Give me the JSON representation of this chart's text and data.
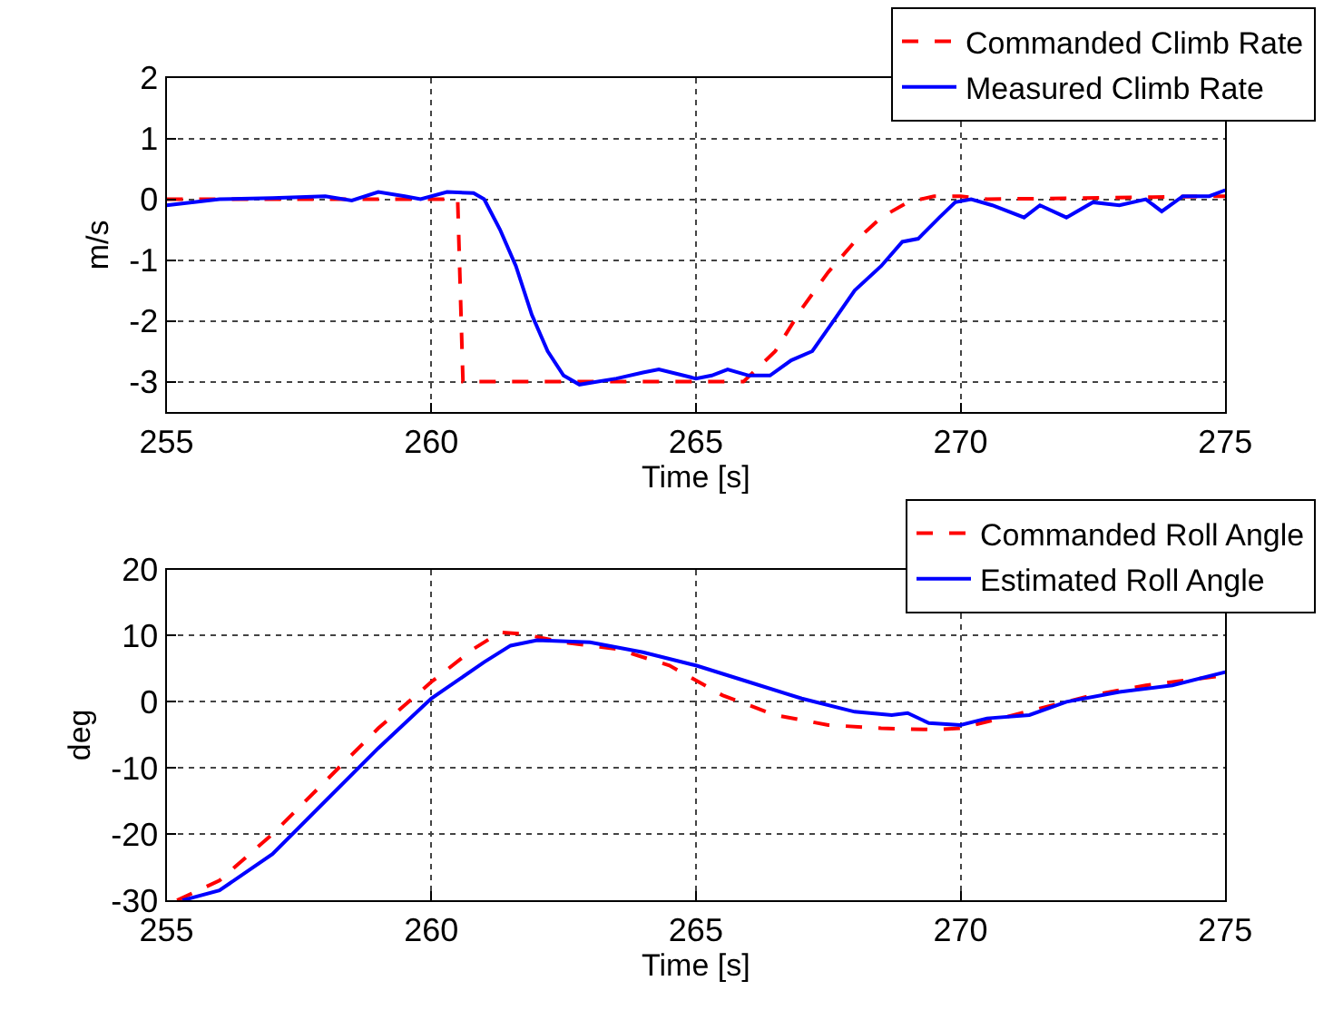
{
  "chart_data": [
    {
      "type": "line",
      "xlabel": "Time [s]",
      "ylabel": "m/s",
      "xlim": [
        255,
        275
      ],
      "xticks": [
        255,
        260,
        265,
        270,
        275
      ],
      "ylim": [
        -3.5,
        2
      ],
      "yticks": [
        -3,
        -2,
        -1,
        0,
        1,
        2
      ],
      "grid": true,
      "legend": "top right",
      "series": [
        {
          "name": "Commanded Climb Rate",
          "color": "#ff0000",
          "line_style": "dashed",
          "x": [
            255,
            260.5,
            260.6,
            265.9,
            266.5,
            267,
            267.5,
            268,
            268.5,
            269,
            269.5,
            270,
            270.5,
            275
          ],
          "values": [
            0,
            0,
            -3,
            -3,
            -2.5,
            -1.8,
            -1.2,
            -0.7,
            -0.3,
            -0.05,
            0.05,
            0.05,
            0,
            0.05
          ]
        },
        {
          "name": "Measured Climb Rate",
          "color": "#0000ff",
          "line_style": "solid",
          "x": [
            255,
            256,
            257,
            258,
            258.5,
            259,
            259.5,
            259.8,
            260.3,
            260.8,
            261,
            261.3,
            261.6,
            261.9,
            262.2,
            262.5,
            262.8,
            263.5,
            264,
            264.3,
            265,
            265.3,
            265.6,
            266,
            266.4,
            266.8,
            267.2,
            267.6,
            268,
            268.5,
            268.9,
            269.2,
            269.6,
            269.9,
            270.2,
            270.6,
            271.2,
            271.5,
            272,
            272.5,
            273,
            273.5,
            273.8,
            274.2,
            274.7,
            275
          ],
          "values": [
            -0.1,
            0,
            0.02,
            0.05,
            -0.02,
            0.12,
            0.05,
            0,
            0.12,
            0.1,
            0,
            -0.5,
            -1.1,
            -1.9,
            -2.5,
            -2.9,
            -3.05,
            -2.95,
            -2.85,
            -2.8,
            -2.95,
            -2.9,
            -2.8,
            -2.9,
            -2.9,
            -2.65,
            -2.5,
            -2.0,
            -1.5,
            -1.1,
            -0.7,
            -0.65,
            -0.3,
            -0.05,
            0,
            -0.1,
            -0.3,
            -0.1,
            -0.3,
            -0.05,
            -0.1,
            0,
            -0.2,
            0.05,
            0.05,
            0.15
          ]
        }
      ]
    },
    {
      "type": "line",
      "xlabel": "Time [s]",
      "ylabel": "deg",
      "xlim": [
        255,
        275
      ],
      "xticks": [
        255,
        260,
        265,
        270,
        275
      ],
      "ylim": [
        -30,
        20
      ],
      "yticks": [
        -30,
        -20,
        -10,
        0,
        10,
        20
      ],
      "grid": true,
      "legend": "top right",
      "series": [
        {
          "name": "Commanded Roll Angle",
          "color": "#ff0000",
          "line_style": "dashed",
          "x": [
            255.2,
            256,
            257,
            258,
            259,
            260,
            260.8,
            261.3,
            261.7,
            262.5,
            263.5,
            264.5,
            265.5,
            266.5,
            267.5,
            268.5,
            269.5,
            270,
            270.5,
            271.5,
            272.5,
            273.5,
            275
          ],
          "values": [
            -30,
            -27,
            -20,
            -12,
            -4,
            3,
            8,
            10.5,
            10.3,
            9,
            8,
            5.5,
            1,
            -2,
            -3.5,
            -4,
            -4.2,
            -4,
            -3,
            -1,
            1,
            2.5,
            4
          ]
        },
        {
          "name": "Estimated Roll Angle",
          "color": "#0000ff",
          "line_style": "solid",
          "x": [
            255.3,
            256,
            257,
            258,
            259,
            260,
            261,
            261.5,
            262,
            263,
            264,
            265,
            266,
            267,
            268,
            268.7,
            269,
            269.4,
            270,
            270.5,
            271.3,
            272,
            273,
            274,
            275
          ],
          "values": [
            -30,
            -28.5,
            -23,
            -15,
            -7,
            0.5,
            6,
            8.5,
            9.3,
            9,
            7.5,
            5.5,
            3,
            0.5,
            -1.5,
            -2,
            -1.7,
            -3.2,
            -3.5,
            -2.5,
            -2,
            0,
            1.5,
            2.5,
            4.5
          ]
        }
      ]
    }
  ]
}
